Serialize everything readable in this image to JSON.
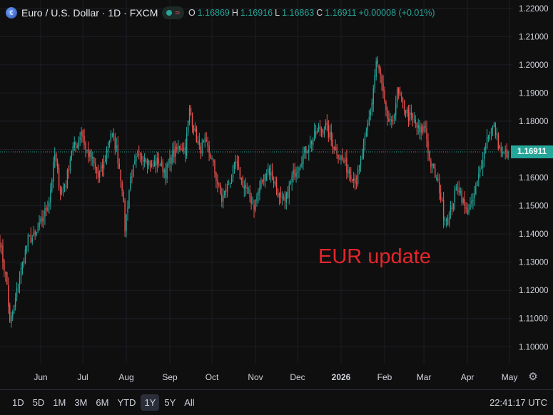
{
  "header": {
    "symbol_title": "Euro / U.S. Dollar · 1D · FXCM",
    "ohlc": {
      "o_label": "O",
      "o_value": "1.16869",
      "h_label": "H",
      "h_value": "1.16916",
      "l_label": "L",
      "l_value": "1.16863",
      "c_label": "C",
      "c_value": "1.16911",
      "change": "+0.00008 (+0.01%)"
    }
  },
  "overlay_text": "EUR update",
  "last_price_label": "1.16911",
  "clock": "22:41:17 UTC",
  "ranges": [
    "1D",
    "5D",
    "1M",
    "3M",
    "6M",
    "YTD",
    "1Y",
    "5Y",
    "All"
  ],
  "active_range": "1Y",
  "colors": {
    "up": "#26a69a",
    "down": "#ef5350",
    "background": "#0f0f0f",
    "overlay": "#e3262b"
  },
  "chart_data": {
    "type": "candlestick",
    "yticks": [
      1.1,
      1.11,
      1.12,
      1.13,
      1.14,
      1.15,
      1.16,
      1.17,
      1.18,
      1.19,
      1.2,
      1.21,
      1.22
    ],
    "ytick_labels": [
      "1.10000",
      "1.11000",
      "1.12000",
      "1.13000",
      "1.14000",
      "1.15000",
      "1.16000",
      "1.17000",
      "1.18000",
      "1.19000",
      "1.20000",
      "1.21000",
      "1.22000"
    ],
    "ylim": [
      1.094,
      1.223
    ],
    "xticks": [
      {
        "label": "Jun",
        "day": 12
      },
      {
        "label": "Jul",
        "day": 42
      },
      {
        "label": "Aug",
        "day": 73
      },
      {
        "label": "Sep",
        "day": 104
      },
      {
        "label": "Oct",
        "day": 134
      },
      {
        "label": "Nov",
        "day": 165
      },
      {
        "label": "Dec",
        "day": 195
      },
      {
        "label": "2026",
        "day": 226,
        "bold": true
      },
      {
        "label": "Feb",
        "day": 257
      },
      {
        "label": "Mar",
        "day": 285
      },
      {
        "label": "Apr",
        "day": 316
      },
      {
        "label": "May",
        "day": 346
      }
    ],
    "xlim": [
      -17,
      348
    ],
    "last_day": 345,
    "last_close": 1.16911,
    "anchors": [
      [
        -17,
        1.137
      ],
      [
        -12,
        1.122
      ],
      [
        -10,
        1.108
      ],
      [
        -7,
        1.114
      ],
      [
        -3,
        1.125
      ],
      [
        3,
        1.138
      ],
      [
        8,
        1.139
      ],
      [
        13,
        1.145
      ],
      [
        18,
        1.152
      ],
      [
        22,
        1.168
      ],
      [
        26,
        1.155
      ],
      [
        30,
        1.158
      ],
      [
        34,
        1.17
      ],
      [
        38,
        1.172
      ],
      [
        41,
        1.177
      ],
      [
        44,
        1.17
      ],
      [
        49,
        1.166
      ],
      [
        53,
        1.16
      ],
      [
        57,
        1.165
      ],
      [
        62,
        1.176
      ],
      [
        66,
        1.17
      ],
      [
        70,
        1.157
      ],
      [
        72,
        1.142
      ],
      [
        76,
        1.16
      ],
      [
        80,
        1.166
      ],
      [
        86,
        1.168
      ],
      [
        91,
        1.164
      ],
      [
        96,
        1.166
      ],
      [
        101,
        1.162
      ],
      [
        106,
        1.168
      ],
      [
        111,
        1.171
      ],
      [
        115,
        1.17
      ],
      [
        118,
        1.184
      ],
      [
        121,
        1.178
      ],
      [
        125,
        1.17
      ],
      [
        129,
        1.172
      ],
      [
        133,
        1.168
      ],
      [
        137,
        1.16
      ],
      [
        141,
        1.152
      ],
      [
        146,
        1.158
      ],
      [
        151,
        1.165
      ],
      [
        156,
        1.158
      ],
      [
        160,
        1.154
      ],
      [
        164,
        1.15
      ],
      [
        169,
        1.158
      ],
      [
        174,
        1.163
      ],
      [
        179,
        1.158
      ],
      [
        183,
        1.152
      ],
      [
        186,
        1.151
      ],
      [
        191,
        1.16
      ],
      [
        195,
        1.164
      ],
      [
        201,
        1.17
      ],
      [
        205,
        1.173
      ],
      [
        210,
        1.177
      ],
      [
        215,
        1.178
      ],
      [
        220,
        1.172
      ],
      [
        226,
        1.167
      ],
      [
        232,
        1.162
      ],
      [
        237,
        1.159
      ],
      [
        242,
        1.17
      ],
      [
        248,
        1.187
      ],
      [
        251,
        1.201
      ],
      [
        254,
        1.196
      ],
      [
        258,
        1.182
      ],
      [
        262,
        1.178
      ],
      [
        266,
        1.19
      ],
      [
        270,
        1.186
      ],
      [
        274,
        1.182
      ],
      [
        278,
        1.18
      ],
      [
        282,
        1.176
      ],
      [
        286,
        1.178
      ],
      [
        289,
        1.166
      ],
      [
        292,
        1.162
      ],
      [
        296,
        1.156
      ],
      [
        299,
        1.147
      ],
      [
        302,
        1.145
      ],
      [
        305,
        1.15
      ],
      [
        309,
        1.158
      ],
      [
        312,
        1.153
      ],
      [
        315,
        1.148
      ],
      [
        319,
        1.15
      ],
      [
        323,
        1.158
      ],
      [
        327,
        1.168
      ],
      [
        331,
        1.176
      ],
      [
        335,
        1.178
      ],
      [
        338,
        1.172
      ],
      [
        341,
        1.168
      ],
      [
        345,
        1.1691
      ]
    ]
  }
}
